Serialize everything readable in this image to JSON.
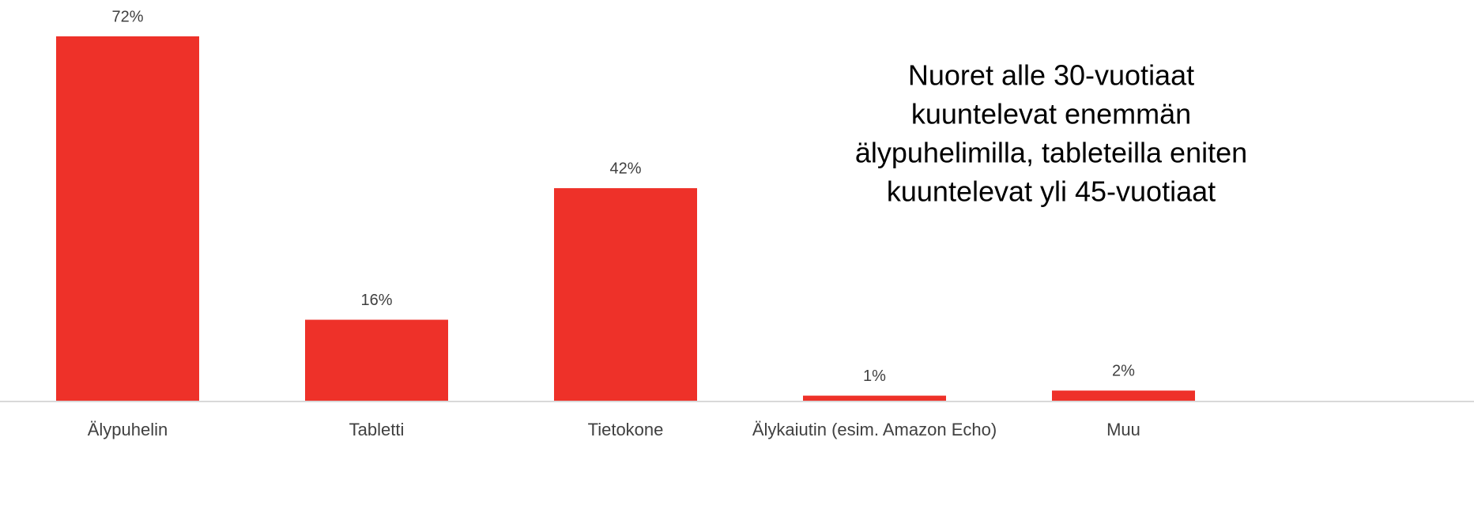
{
  "chart_data": {
    "type": "bar",
    "categories": [
      "Älypuhelin",
      "Tabletti",
      "Tietokone",
      "Älykaiutin (esim. Amazon Echo)",
      "Muu"
    ],
    "values": [
      72,
      16,
      42,
      1,
      2
    ],
    "value_labels": [
      "72%",
      "16%",
      "42%",
      "1%",
      "2%"
    ],
    "color": "#ee3129",
    "annotation": [
      "Nuoret alle 30-vuotiaat",
      "kuuntelevat enemmän",
      "älypuhelimilla, tableteilla eniten",
      "kuuntelevat yli 45-vuotiaat"
    ]
  }
}
